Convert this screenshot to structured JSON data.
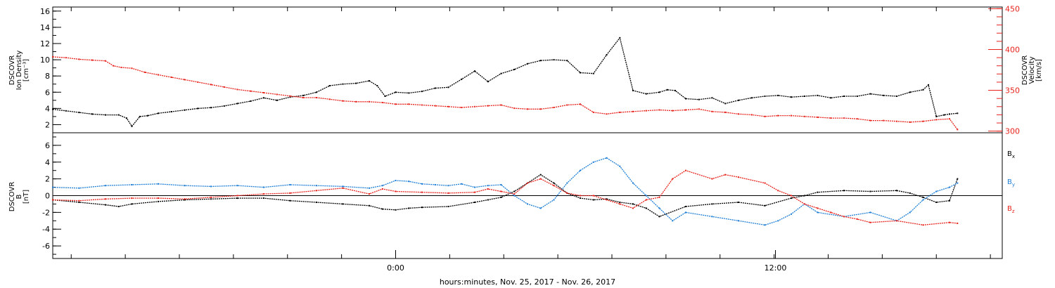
{
  "chart_data": [
    {
      "type": "line",
      "panel": "top",
      "x_unit": "hours since 2017-11-24 12:00 (UT)",
      "x_range": [
        0,
        36
      ],
      "left_axis": {
        "label_lines": [
          "DSCOVR",
          "Ion Density",
          "[cm⁻³]"
        ],
        "ylim": [
          1,
          16.5
        ],
        "ticks": [
          2,
          4,
          6,
          8,
          10,
          12,
          14,
          16
        ],
        "color": "#000000"
      },
      "right_axis": {
        "label_lines": [
          "DSCOVR",
          "Velocity",
          "[km/s]"
        ],
        "ylim": [
          298,
          452
        ],
        "ticks": [
          300,
          350,
          400,
          450
        ],
        "color": "#e8231c"
      },
      "series": [
        {
          "axis": "left",
          "color": "#000000",
          "x": [
            0,
            0.5,
            1,
            1.5,
            2,
            2.5,
            2.8,
            3,
            3.3,
            3.6,
            4,
            4.5,
            5,
            5.5,
            6,
            6.5,
            7,
            7.5,
            8,
            8.5,
            9,
            9.5,
            10,
            10.5,
            11,
            11.5,
            12,
            12.3,
            12.6,
            13,
            13.5,
            14,
            14.5,
            15,
            15.5,
            16,
            16.5,
            17,
            17.5,
            18,
            18.5,
            19,
            19.5,
            20,
            20.5,
            21,
            21.5,
            22,
            22.5,
            23,
            23.3,
            23.6,
            24,
            24.5,
            25,
            25.5,
            26,
            26.5,
            27,
            27.5,
            28,
            28.5,
            29,
            29.5,
            30,
            30.5,
            31,
            31.5,
            32,
            32.5,
            33,
            33.2,
            33.5,
            33.8,
            34,
            34.3
          ],
          "values": [
            3.9,
            3.7,
            3.5,
            3.3,
            3.2,
            3.2,
            2.8,
            1.8,
            3.0,
            3.1,
            3.4,
            3.6,
            3.8,
            4.0,
            4.1,
            4.3,
            4.6,
            4.9,
            5.3,
            5.0,
            5.4,
            5.6,
            6.0,
            6.8,
            7.0,
            7.1,
            7.4,
            6.8,
            5.5,
            6.0,
            5.9,
            6.1,
            6.5,
            6.6,
            7.6,
            8.6,
            7.3,
            8.3,
            8.8,
            9.5,
            9.9,
            10.0,
            9.9,
            8.4,
            8.3,
            10.6,
            12.7,
            6.2,
            5.8,
            6.0,
            6.3,
            6.2,
            5.2,
            5.1,
            5.3,
            4.6,
            5.0,
            5.3,
            5.5,
            5.6,
            5.4,
            5.5,
            5.6,
            5.3,
            5.5,
            5.5,
            5.8,
            5.6,
            5.5,
            6.0,
            6.3,
            6.9,
            3.0,
            3.2,
            3.3,
            3.4
          ]
        },
        {
          "axis": "right",
          "color": "#e8231c",
          "x": [
            0,
            0.5,
            1,
            1.5,
            2,
            2.3,
            2.6,
            3,
            3.5,
            4,
            4.5,
            5,
            5.5,
            6,
            6.5,
            7,
            7.5,
            8,
            8.5,
            9,
            9.5,
            10,
            10.5,
            11,
            11.5,
            12,
            12.5,
            13,
            13.5,
            14,
            14.5,
            15,
            15.5,
            16,
            16.5,
            17,
            17.5,
            18,
            18.5,
            19,
            19.5,
            20,
            20.5,
            21,
            21.5,
            22,
            22.5,
            23,
            23.5,
            24,
            24.5,
            25,
            25.5,
            26,
            26.5,
            27,
            27.5,
            28,
            28.5,
            29,
            29.5,
            30,
            30.5,
            31,
            31.5,
            32,
            32.5,
            33,
            33.5,
            34,
            34.3
          ],
          "values": [
            391,
            390,
            388,
            387,
            386,
            380,
            378,
            377,
            372,
            369,
            366,
            363,
            360,
            357,
            354,
            351,
            349,
            347,
            345,
            343,
            341,
            341,
            339,
            337,
            336,
            336,
            335,
            333,
            333,
            332,
            331,
            330,
            329,
            330,
            331,
            332,
            328,
            327,
            327,
            329,
            332,
            333,
            323,
            321,
            323,
            324,
            325,
            326,
            325,
            326,
            327,
            324,
            323,
            321,
            320,
            318,
            319,
            319,
            318,
            317,
            316,
            316,
            315,
            313,
            313,
            312,
            311,
            312,
            314,
            315,
            302
          ]
        }
      ]
    },
    {
      "type": "line",
      "panel": "bottom",
      "x_unit": "hours since 2017-11-24 12:00 (UT)",
      "x_range": [
        0,
        36
      ],
      "left_axis": {
        "label_lines": [
          "DSCOVR",
          "B",
          "[nT]"
        ],
        "ylim": [
          -7.5,
          7.5
        ],
        "ticks": [
          -6,
          -4,
          -2,
          0,
          2,
          4,
          6
        ]
      },
      "x_ticks": [
        {
          "x": 13,
          "label": "0:00"
        },
        {
          "x": 27.4,
          "label": "12:00"
        }
      ],
      "xlabel": "hours:minutes, Nov. 25, 2017 - Nov. 26, 2017",
      "legend": [
        {
          "label": "B",
          "sub": "x",
          "color": "#000000"
        },
        {
          "label": "B",
          "sub": "y",
          "color": "#1f7fd6"
        },
        {
          "label": "B",
          "sub": "z",
          "color": "#e8231c"
        }
      ],
      "series": [
        {
          "color": "#000000",
          "x": [
            0,
            1,
            2,
            2.5,
            3,
            4,
            5,
            6,
            7,
            8,
            9,
            10,
            11,
            12,
            12.5,
            13,
            13.5,
            14,
            15,
            16,
            16.5,
            17,
            17.5,
            18,
            18.5,
            19,
            19.5,
            20,
            20.5,
            21,
            21.5,
            22,
            22.5,
            23,
            24,
            25,
            26,
            27,
            28,
            28.5,
            29,
            30,
            31,
            32,
            32.5,
            33,
            33.5,
            34,
            34.3
          ],
          "values": [
            -0.5,
            -0.8,
            -1.1,
            -1.3,
            -1.0,
            -0.7,
            -0.5,
            -0.4,
            -0.3,
            -0.3,
            -0.6,
            -0.8,
            -1.0,
            -1.2,
            -1.6,
            -1.7,
            -1.5,
            -1.4,
            -1.3,
            -0.8,
            -0.5,
            -0.2,
            0.5,
            1.5,
            2.5,
            1.5,
            0.3,
            -0.3,
            -0.5,
            -0.4,
            -0.8,
            -1.0,
            -1.5,
            -2.5,
            -1.3,
            -1.0,
            -0.8,
            -1.2,
            -0.3,
            0.0,
            0.4,
            0.6,
            0.5,
            0.6,
            0.3,
            -0.2,
            -0.8,
            -0.6,
            2.0
          ]
        },
        {
          "color": "#1f7fd6",
          "x": [
            0,
            1,
            2,
            3,
            4,
            5,
            6,
            7,
            8,
            9,
            10,
            11,
            12,
            12.5,
            13,
            13.5,
            14,
            14.5,
            15,
            15.5,
            16,
            16.5,
            17,
            17.5,
            18,
            18.5,
            19,
            19.5,
            20,
            20.5,
            21,
            21.5,
            22,
            22.5,
            23,
            23.5,
            24,
            25,
            26,
            27,
            27.5,
            28,
            28.5,
            29,
            30,
            31,
            32,
            32.5,
            33,
            33.5,
            34,
            34.3
          ],
          "values": [
            1.0,
            0.9,
            1.2,
            1.3,
            1.4,
            1.2,
            1.1,
            1.2,
            1.0,
            1.3,
            1.2,
            1.1,
            0.9,
            1.2,
            1.8,
            1.7,
            1.4,
            1.3,
            1.2,
            1.4,
            1.0,
            1.2,
            1.3,
            0.0,
            -1.0,
            -1.5,
            -0.5,
            1.5,
            3.0,
            4.0,
            4.5,
            3.5,
            1.5,
            0.0,
            -1.5,
            -3.0,
            -2.0,
            -2.5,
            -3.0,
            -3.5,
            -3.0,
            -2.2,
            -1.0,
            -2.0,
            -2.5,
            -2.0,
            -3.0,
            -2.0,
            -0.5,
            0.5,
            1.0,
            1.5
          ]
        },
        {
          "color": "#e8231c",
          "x": [
            0,
            1,
            2,
            3,
            4,
            5,
            6,
            7,
            8,
            9,
            10,
            11,
            12,
            12.5,
            13,
            14,
            15,
            16,
            16.5,
            17,
            17.5,
            18,
            18.5,
            19,
            19.5,
            20,
            20.5,
            21,
            21.5,
            22,
            22.5,
            23,
            23.5,
            24,
            25,
            25.5,
            26,
            27,
            27.5,
            28,
            28.5,
            29,
            29.5,
            30,
            30.5,
            31,
            32,
            33,
            34,
            34.3
          ],
          "values": [
            -0.5,
            -0.6,
            -0.4,
            -0.3,
            -0.3,
            -0.4,
            -0.2,
            0.0,
            0.2,
            0.3,
            0.6,
            0.9,
            0.2,
            0.8,
            0.5,
            0.4,
            0.3,
            0.4,
            0.8,
            0.5,
            0.2,
            1.5,
            2.0,
            1.2,
            0.3,
            0.0,
            0.0,
            -0.5,
            -1.0,
            -1.5,
            -0.5,
            -0.2,
            2.0,
            3.0,
            2.0,
            2.5,
            2.2,
            1.5,
            0.6,
            0.0,
            -1.0,
            -1.5,
            -2.0,
            -2.5,
            -2.8,
            -3.2,
            -3.0,
            -3.5,
            -3.2,
            -3.3
          ]
        }
      ]
    }
  ]
}
